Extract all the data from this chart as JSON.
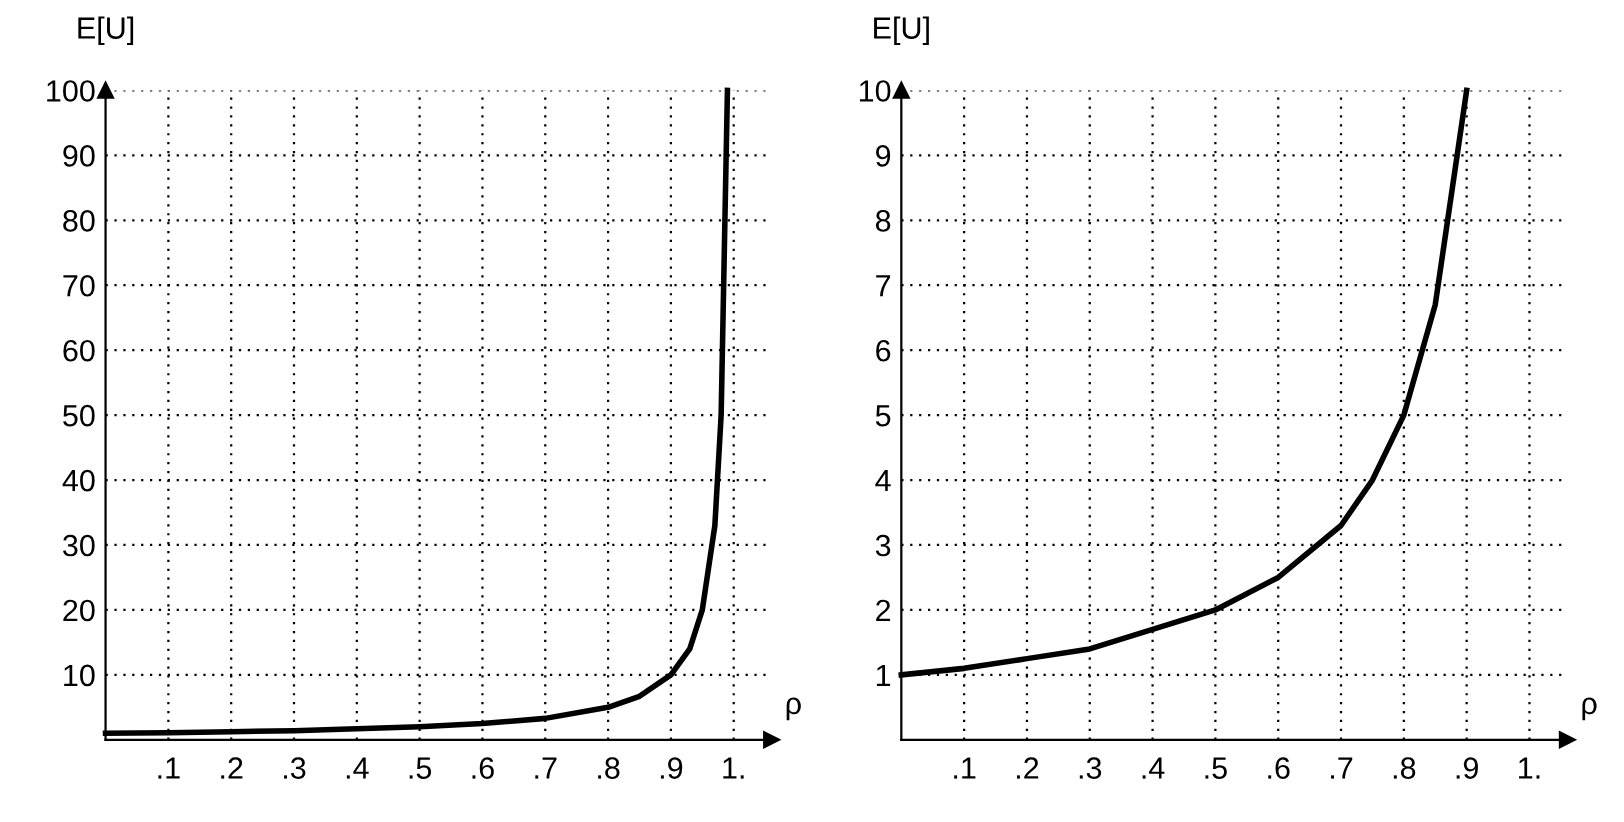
{
  "chart_data": [
    {
      "type": "line",
      "xlabel": "ρ",
      "ylabel": "E[U]",
      "x": [
        0,
        0.1,
        0.2,
        0.3,
        0.4,
        0.5,
        0.6,
        0.7,
        0.8,
        0.85,
        0.9,
        0.93,
        0.95,
        0.97,
        0.98,
        0.99
      ],
      "series": [
        {
          "color": "#000000",
          "values": [
            1,
            1.1,
            1.25,
            1.4,
            1.7,
            2,
            2.5,
            3.3,
            5,
            6.7,
            10,
            14,
            20,
            33,
            50,
            100
          ]
        }
      ],
      "xlim": [
        0,
        1.06
      ],
      "ylim": [
        0,
        100
      ],
      "xticks": [
        {
          "value": 0.1,
          "label": ".1"
        },
        {
          "value": 0.2,
          "label": ".2"
        },
        {
          "value": 0.3,
          "label": ".3"
        },
        {
          "value": 0.4,
          "label": ".4"
        },
        {
          "value": 0.5,
          "label": ".5"
        },
        {
          "value": 0.6,
          "label": ".6"
        },
        {
          "value": 0.7,
          "label": ".7"
        },
        {
          "value": 0.8,
          "label": ".8"
        },
        {
          "value": 0.9,
          "label": ".9"
        },
        {
          "value": 1,
          "label": "1."
        }
      ],
      "yticks": [
        10,
        20,
        30,
        40,
        50,
        60,
        70,
        80,
        90,
        100
      ],
      "grid": true,
      "line_style": "solid",
      "marker": "none"
    },
    {
      "type": "line",
      "xlabel": "ρ",
      "ylabel": "E[U]",
      "x": [
        0,
        0.1,
        0.2,
        0.3,
        0.4,
        0.5,
        0.6,
        0.7,
        0.75,
        0.8,
        0.85,
        0.9
      ],
      "series": [
        {
          "color": "#000000",
          "values": [
            1,
            1.1,
            1.25,
            1.4,
            1.7,
            2,
            2.5,
            3.3,
            4,
            5,
            6.7,
            10
          ]
        }
      ],
      "xlim": [
        0,
        1.06
      ],
      "ylim": [
        0,
        10
      ],
      "xticks": [
        {
          "value": 0.1,
          "label": ".1"
        },
        {
          "value": 0.2,
          "label": ".2"
        },
        {
          "value": 0.3,
          "label": ".3"
        },
        {
          "value": 0.4,
          "label": ".4"
        },
        {
          "value": 0.5,
          "label": ".5"
        },
        {
          "value": 0.6,
          "label": ".6"
        },
        {
          "value": 0.7,
          "label": ".7"
        },
        {
          "value": 0.8,
          "label": ".8"
        },
        {
          "value": 0.9,
          "label": ".9"
        },
        {
          "value": 1,
          "label": "1."
        }
      ],
      "yticks": [
        1,
        2,
        3,
        4,
        5,
        6,
        7,
        8,
        9,
        10
      ],
      "grid": true,
      "line_style": "solid",
      "marker": "none"
    }
  ]
}
